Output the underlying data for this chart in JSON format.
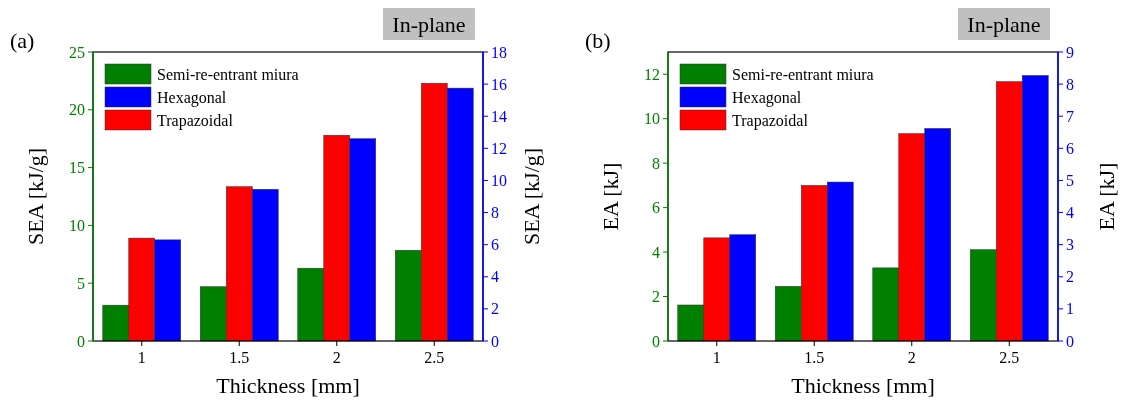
{
  "chart_data": [
    {
      "type": "bar",
      "annotations": [
        "(a)",
        "In-plane"
      ],
      "xlabel": "Thickness [mm]",
      "ylabel": "SEA [kJ/g]",
      "y2label": "SEA [kJ/g]",
      "categories": [
        "1",
        "1.5",
        "2",
        "2.5"
      ],
      "series": [
        {
          "name": "Semi-re-entrant miura",
          "color": "#008000",
          "values": [
            3.1,
            4.7,
            6.3,
            7.85
          ]
        },
        {
          "name": "Hexagonal",
          "color": "#0000ff",
          "axis": "y2",
          "values": [
            6.3,
            9.45,
            12.6,
            15.75
          ]
        },
        {
          "name": "Trapazoidal",
          "color": "#ff0000",
          "values": [
            8.9,
            13.35,
            17.8,
            22.3
          ]
        }
      ],
      "ylim": [
        0,
        25
      ],
      "yticks": [
        0,
        5,
        10,
        15,
        20,
        25
      ],
      "y2lim": [
        0,
        18
      ],
      "y2ticks": [
        0,
        2,
        4,
        6,
        8,
        10,
        12,
        14,
        16,
        18
      ],
      "legend": "top left",
      "grid": false
    },
    {
      "type": "bar",
      "annotations": [
        "(b)",
        "In-plane"
      ],
      "xlabel": "Thickness [mm]",
      "ylabel": "EA [kJ]",
      "y2label": "EA [kJ]",
      "categories": [
        "1",
        "1.5",
        "2",
        "2.5"
      ],
      "series": [
        {
          "name": "Semi-re-entrant miura",
          "color": "#008000",
          "values": [
            1.62,
            2.46,
            3.29,
            4.11
          ]
        },
        {
          "name": "Hexagonal",
          "color": "#0000ff",
          "axis": "y2",
          "values": [
            3.31,
            4.95,
            6.62,
            8.27
          ]
        },
        {
          "name": "Trapazoidal",
          "color": "#ff0000",
          "values": [
            4.64,
            7.0,
            9.33,
            11.67
          ]
        }
      ],
      "ylim": [
        0,
        13
      ],
      "yticks": [
        0,
        2,
        4,
        6,
        8,
        10,
        12
      ],
      "y2lim": [
        0,
        9
      ],
      "y2ticks": [
        0,
        1,
        2,
        3,
        4,
        5,
        6,
        7,
        8,
        9
      ],
      "legend": "top left",
      "grid": false
    }
  ]
}
